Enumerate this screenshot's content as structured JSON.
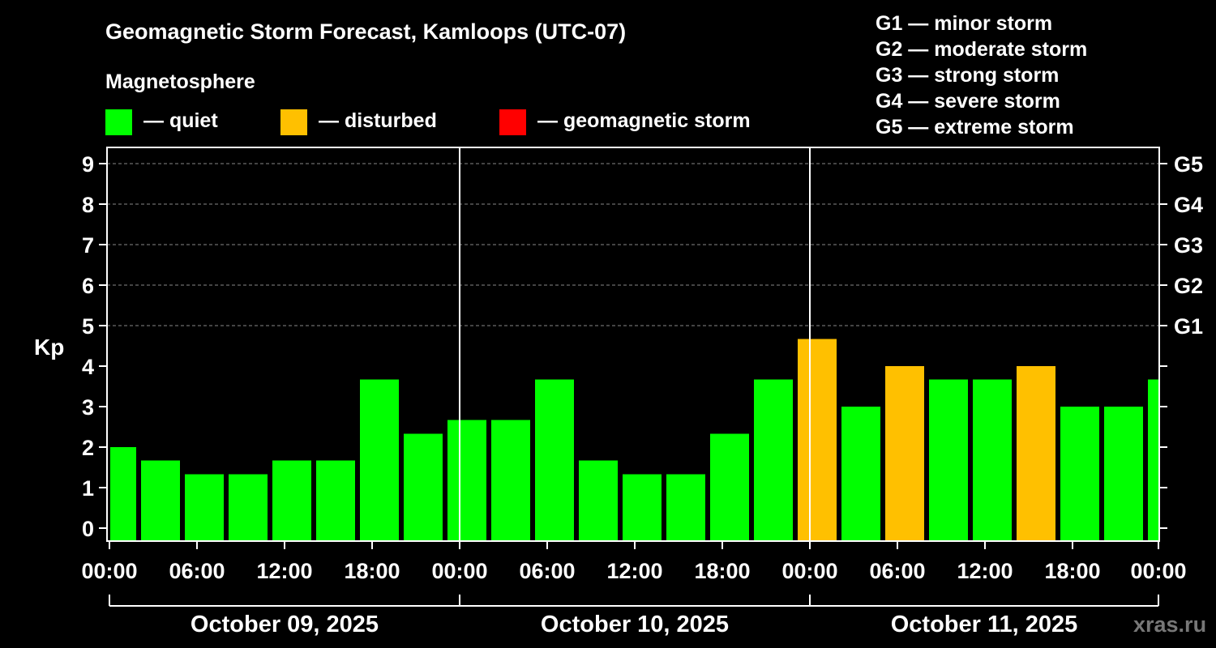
{
  "chart_data": {
    "type": "bar",
    "title": "Geomagnetic Storm Forecast, Kamloops (UTC-07)",
    "legend_title": "Magnetosphere",
    "legend": [
      {
        "label": "— quiet",
        "color": "#00ff00"
      },
      {
        "label": "— disturbed",
        "color": "#ffc000"
      },
      {
        "label": "— geomagnetic storm",
        "color": "#ff0000"
      }
    ],
    "storm_scale": [
      "G1 — minor storm",
      "G2 — moderate storm",
      "G3 — strong storm",
      "G4 — severe storm",
      "G5 — extreme storm"
    ],
    "ylabel": "Kp",
    "ylim": [
      0,
      9
    ],
    "yticks": [
      "0",
      "1",
      "2",
      "3",
      "4",
      "5",
      "6",
      "7",
      "8",
      "9"
    ],
    "right_ticks": [
      {
        "kp": 5,
        "label": "G1"
      },
      {
        "kp": 6,
        "label": "G2"
      },
      {
        "kp": 7,
        "label": "G3"
      },
      {
        "kp": 8,
        "label": "G4"
      },
      {
        "kp": 9,
        "label": "G5"
      }
    ],
    "xticks": [
      "00:00",
      "06:00",
      "12:00",
      "18:00",
      "00:00",
      "06:00",
      "12:00",
      "18:00",
      "00:00",
      "06:00",
      "12:00",
      "18:00",
      "00:00"
    ],
    "days": [
      "October 09, 2025",
      "October 10, 2025",
      "October 11, 2025"
    ],
    "watermark": "xras.ru",
    "bars": [
      {
        "start": "Oct 09 00:00",
        "kp": 2.0,
        "status": "quiet"
      },
      {
        "start": "Oct 09 03:00",
        "kp": 1.67,
        "status": "quiet"
      },
      {
        "start": "Oct 09 06:00",
        "kp": 1.33,
        "status": "quiet"
      },
      {
        "start": "Oct 09 09:00",
        "kp": 1.33,
        "status": "quiet"
      },
      {
        "start": "Oct 09 12:00",
        "kp": 1.67,
        "status": "quiet"
      },
      {
        "start": "Oct 09 15:00",
        "kp": 1.67,
        "status": "quiet"
      },
      {
        "start": "Oct 09 18:00",
        "kp": 3.67,
        "status": "quiet"
      },
      {
        "start": "Oct 09 21:00",
        "kp": 2.33,
        "status": "quiet"
      },
      {
        "start": "Oct 10 00:00",
        "kp": 2.67,
        "status": "quiet"
      },
      {
        "start": "Oct 10 03:00",
        "kp": 2.67,
        "status": "quiet"
      },
      {
        "start": "Oct 10 06:00",
        "kp": 3.67,
        "status": "quiet"
      },
      {
        "start": "Oct 10 09:00",
        "kp": 1.67,
        "status": "quiet"
      },
      {
        "start": "Oct 10 12:00",
        "kp": 1.33,
        "status": "quiet"
      },
      {
        "start": "Oct 10 15:00",
        "kp": 1.33,
        "status": "quiet"
      },
      {
        "start": "Oct 10 18:00",
        "kp": 2.33,
        "status": "quiet"
      },
      {
        "start": "Oct 10 21:00",
        "kp": 3.67,
        "status": "quiet"
      },
      {
        "start": "Oct 11 00:00",
        "kp": 4.67,
        "status": "disturbed"
      },
      {
        "start": "Oct 11 03:00",
        "kp": 3.0,
        "status": "quiet"
      },
      {
        "start": "Oct 11 06:00",
        "kp": 4.0,
        "status": "disturbed"
      },
      {
        "start": "Oct 11 09:00",
        "kp": 3.67,
        "status": "quiet"
      },
      {
        "start": "Oct 11 12:00",
        "kp": 3.67,
        "status": "quiet"
      },
      {
        "start": "Oct 11 15:00",
        "kp": 4.0,
        "status": "disturbed"
      },
      {
        "start": "Oct 11 18:00",
        "kp": 3.0,
        "status": "quiet"
      },
      {
        "start": "Oct 11 21:00",
        "kp": 3.0,
        "status": "quiet"
      },
      {
        "start": "Oct 12 00:00",
        "kp": 3.67,
        "status": "quiet"
      }
    ],
    "colors": {
      "quiet": "#00ff00",
      "disturbed": "#ffc000",
      "storm": "#ff0000",
      "background": "#000000",
      "grid": "#888888"
    }
  }
}
